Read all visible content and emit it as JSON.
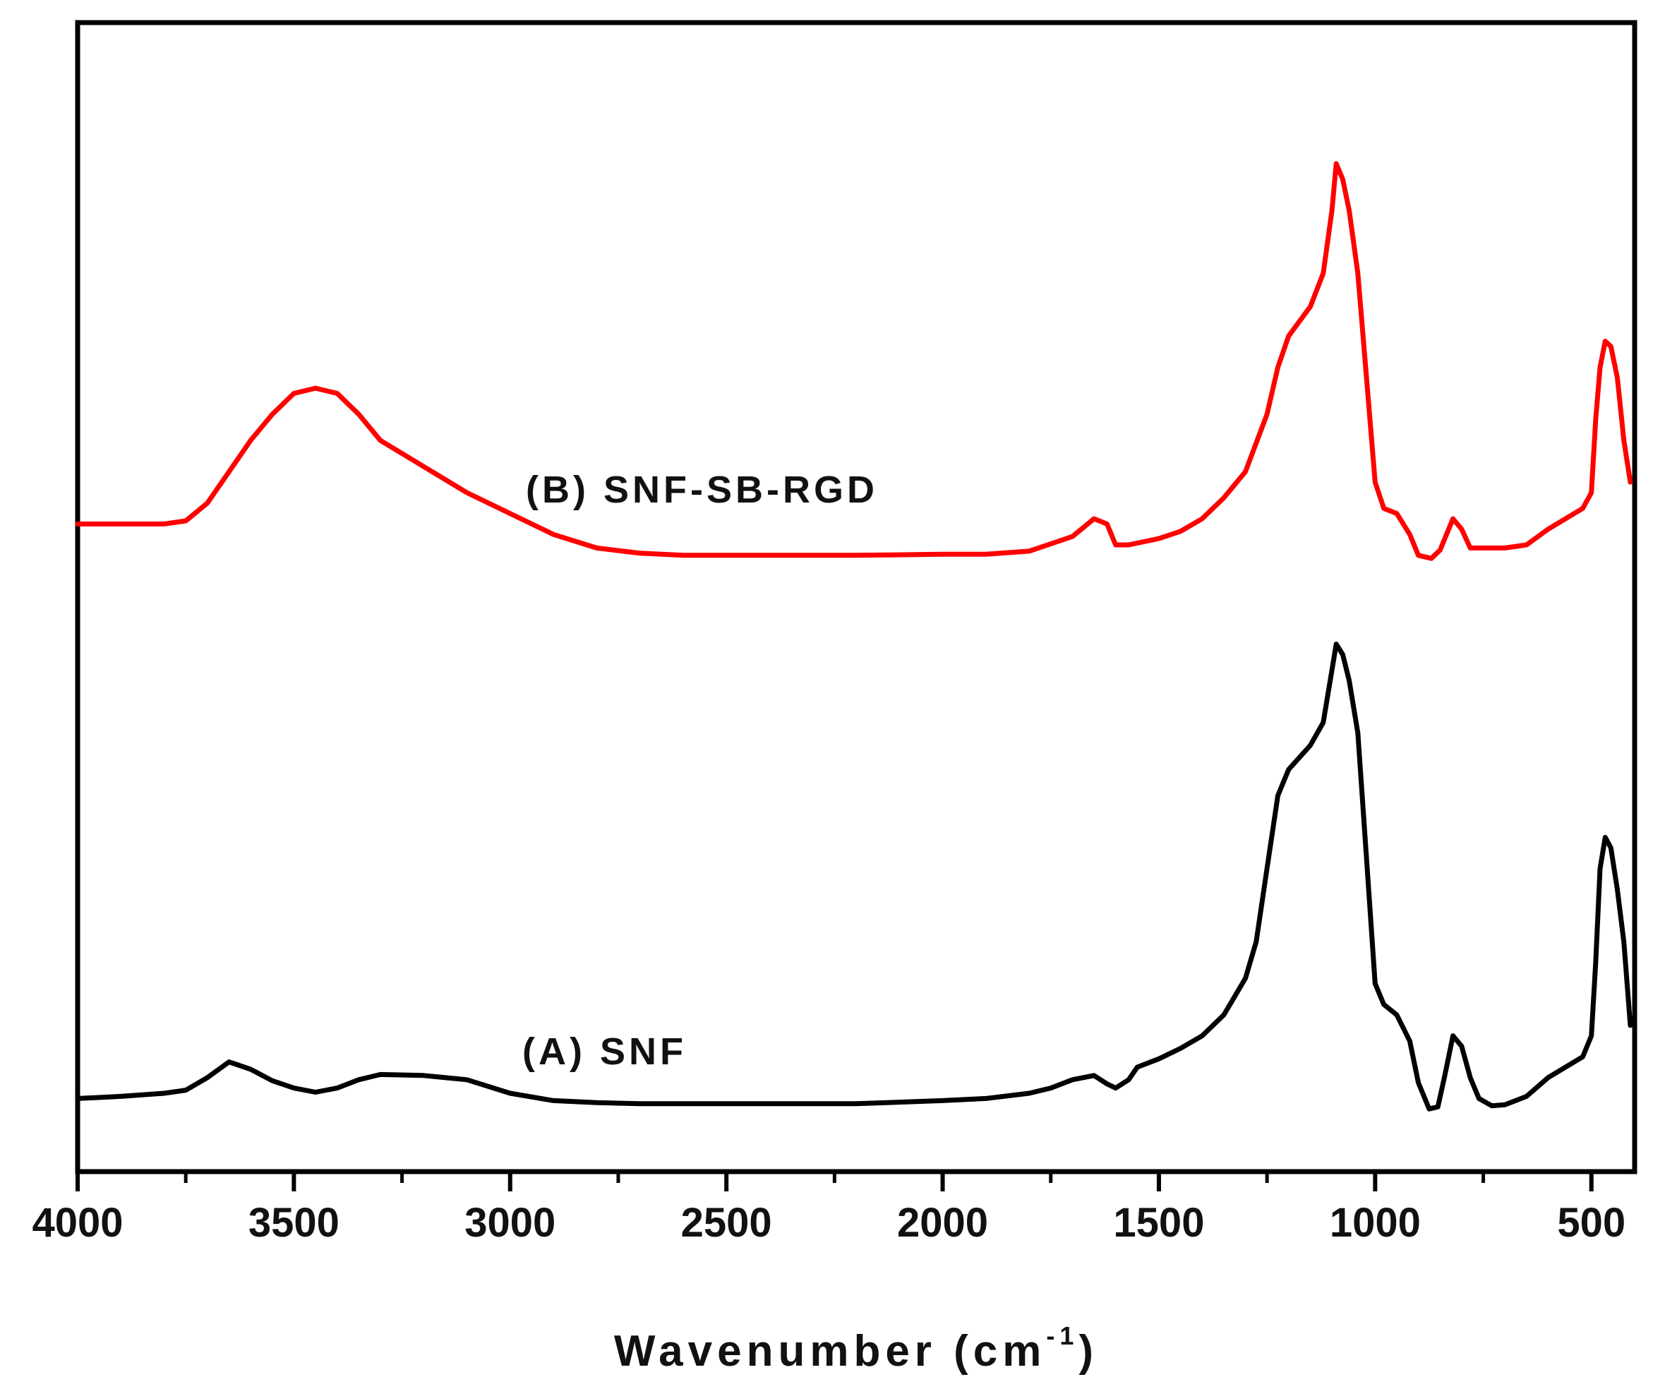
{
  "chart_data": {
    "type": "line",
    "title": "",
    "xlabel_main": "Wavenumber (cm",
    "xlabel_sup": "-1",
    "xlabel_close": ")",
    "ylabel": "",
    "xlim": [
      4000,
      400
    ],
    "x_reversed": true,
    "x_ticks": [
      4000,
      3500,
      3000,
      2500,
      2000,
      1500,
      1000,
      500
    ],
    "x_tick_labels": [
      "4000",
      "3500",
      "3000",
      "2500",
      "2000",
      "1500",
      "1000",
      "500"
    ],
    "x_minor_ticks": [
      3750,
      3250,
      2750,
      2250,
      1750,
      1250,
      750
    ],
    "y_ticks_shown": false,
    "ylim": [
      0,
      1.1
    ],
    "grid": false,
    "legend": "none",
    "series": [
      {
        "name": "(B) SNF-SB-RGD",
        "color": "#ff0000",
        "points": [
          [
            4000,
            0.62
          ],
          [
            3900,
            0.62
          ],
          [
            3800,
            0.62
          ],
          [
            3750,
            0.623
          ],
          [
            3700,
            0.64
          ],
          [
            3650,
            0.67
          ],
          [
            3600,
            0.7
          ],
          [
            3550,
            0.725
          ],
          [
            3500,
            0.745
          ],
          [
            3450,
            0.75
          ],
          [
            3400,
            0.745
          ],
          [
            3350,
            0.725
          ],
          [
            3300,
            0.7
          ],
          [
            3200,
            0.675
          ],
          [
            3100,
            0.65
          ],
          [
            3000,
            0.63
          ],
          [
            2900,
            0.61
          ],
          [
            2800,
            0.597
          ],
          [
            2700,
            0.592
          ],
          [
            2600,
            0.59
          ],
          [
            2400,
            0.59
          ],
          [
            2200,
            0.59
          ],
          [
            2000,
            0.591
          ],
          [
            1900,
            0.591
          ],
          [
            1800,
            0.594
          ],
          [
            1700,
            0.608
          ],
          [
            1650,
            0.625
          ],
          [
            1620,
            0.62
          ],
          [
            1600,
            0.6
          ],
          [
            1570,
            0.6
          ],
          [
            1500,
            0.606
          ],
          [
            1450,
            0.613
          ],
          [
            1400,
            0.625
          ],
          [
            1350,
            0.645
          ],
          [
            1300,
            0.67
          ],
          [
            1250,
            0.725
          ],
          [
            1225,
            0.77
          ],
          [
            1200,
            0.8
          ],
          [
            1150,
            0.828
          ],
          [
            1120,
            0.86
          ],
          [
            1100,
            0.92
          ],
          [
            1090,
            0.965
          ],
          [
            1075,
            0.95
          ],
          [
            1060,
            0.92
          ],
          [
            1040,
            0.86
          ],
          [
            1020,
            0.76
          ],
          [
            1000,
            0.66
          ],
          [
            980,
            0.635
          ],
          [
            950,
            0.63
          ],
          [
            920,
            0.61
          ],
          [
            900,
            0.59
          ],
          [
            870,
            0.587
          ],
          [
            850,
            0.595
          ],
          [
            820,
            0.625
          ],
          [
            800,
            0.615
          ],
          [
            780,
            0.597
          ],
          [
            740,
            0.597
          ],
          [
            700,
            0.597
          ],
          [
            650,
            0.6
          ],
          [
            600,
            0.615
          ],
          [
            560,
            0.625
          ],
          [
            520,
            0.635
          ],
          [
            500,
            0.65
          ],
          [
            490,
            0.72
          ],
          [
            480,
            0.77
          ],
          [
            468,
            0.795
          ],
          [
            455,
            0.79
          ],
          [
            440,
            0.76
          ],
          [
            425,
            0.7
          ],
          [
            410,
            0.66
          ]
        ]
      },
      {
        "name": "(A) SNF",
        "color": "#000000",
        "points": [
          [
            4000,
            0.07
          ],
          [
            3900,
            0.072
          ],
          [
            3800,
            0.075
          ],
          [
            3750,
            0.078
          ],
          [
            3700,
            0.09
          ],
          [
            3650,
            0.105
          ],
          [
            3600,
            0.098
          ],
          [
            3550,
            0.087
          ],
          [
            3500,
            0.08
          ],
          [
            3450,
            0.076
          ],
          [
            3400,
            0.08
          ],
          [
            3350,
            0.088
          ],
          [
            3300,
            0.093
          ],
          [
            3200,
            0.092
          ],
          [
            3100,
            0.088
          ],
          [
            3000,
            0.075
          ],
          [
            2900,
            0.068
          ],
          [
            2800,
            0.066
          ],
          [
            2700,
            0.065
          ],
          [
            2600,
            0.065
          ],
          [
            2400,
            0.065
          ],
          [
            2200,
            0.065
          ],
          [
            2000,
            0.068
          ],
          [
            1900,
            0.07
          ],
          [
            1800,
            0.075
          ],
          [
            1750,
            0.08
          ],
          [
            1700,
            0.088
          ],
          [
            1650,
            0.092
          ],
          [
            1620,
            0.084
          ],
          [
            1600,
            0.08
          ],
          [
            1570,
            0.088
          ],
          [
            1550,
            0.1
          ],
          [
            1500,
            0.108
          ],
          [
            1450,
            0.118
          ],
          [
            1400,
            0.13
          ],
          [
            1350,
            0.15
          ],
          [
            1300,
            0.185
          ],
          [
            1275,
            0.22
          ],
          [
            1250,
            0.29
          ],
          [
            1225,
            0.36
          ],
          [
            1200,
            0.385
          ],
          [
            1150,
            0.408
          ],
          [
            1120,
            0.43
          ],
          [
            1100,
            0.48
          ],
          [
            1090,
            0.505
          ],
          [
            1075,
            0.495
          ],
          [
            1060,
            0.47
          ],
          [
            1040,
            0.42
          ],
          [
            1020,
            0.3
          ],
          [
            1000,
            0.18
          ],
          [
            980,
            0.16
          ],
          [
            950,
            0.15
          ],
          [
            920,
            0.125
          ],
          [
            900,
            0.085
          ],
          [
            875,
            0.06
          ],
          [
            855,
            0.062
          ],
          [
            840,
            0.09
          ],
          [
            820,
            0.13
          ],
          [
            800,
            0.12
          ],
          [
            780,
            0.09
          ],
          [
            760,
            0.07
          ],
          [
            730,
            0.063
          ],
          [
            700,
            0.064
          ],
          [
            650,
            0.072
          ],
          [
            600,
            0.09
          ],
          [
            560,
            0.1
          ],
          [
            520,
            0.11
          ],
          [
            500,
            0.13
          ],
          [
            490,
            0.2
          ],
          [
            480,
            0.29
          ],
          [
            468,
            0.32
          ],
          [
            455,
            0.31
          ],
          [
            440,
            0.27
          ],
          [
            425,
            0.22
          ],
          [
            410,
            0.14
          ]
        ]
      }
    ]
  }
}
